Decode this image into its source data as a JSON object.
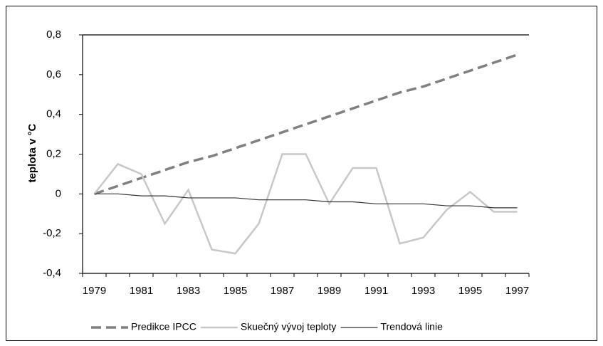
{
  "chart_data": {
    "type": "line",
    "y_label": "teplota v °C",
    "categories": [
      "1979",
      null,
      "1981",
      null,
      "1983",
      null,
      "1985",
      null,
      "1987",
      null,
      "1989",
      null,
      "1991",
      null,
      "1993",
      null,
      "1995",
      null,
      "1997"
    ],
    "ylim": [
      -0.4,
      0.8
    ],
    "yticks": [
      {
        "value": -0.4,
        "label": "-0,4"
      },
      {
        "value": -0.2,
        "label": "-0,2"
      },
      0,
      {
        "value": 0.2,
        "label": "0,2"
      },
      {
        "value": 0.4,
        "label": "0,4"
      },
      {
        "value": 0.6,
        "label": "0,6"
      },
      {
        "value": 0.8,
        "label": "0,8"
      }
    ],
    "series": [
      {
        "name": "Predikce IPCC",
        "color": "#808080",
        "dashed": true,
        "values": [
          0,
          0.04,
          0.08,
          0.12,
          0.16,
          0.19,
          0.23,
          0.27,
          0.31,
          0.35,
          0.39,
          0.43,
          0.47,
          0.51,
          0.54,
          0.58,
          0.62,
          0.66,
          0.7
        ]
      },
      {
        "name": "Skuečný vývoj teploty",
        "color": "#c8c8c8",
        "dashed": false,
        "values": [
          0,
          0.15,
          0.1,
          -0.15,
          0.02,
          -0.28,
          -0.3,
          -0.15,
          0.2,
          0.2,
          -0.05,
          0.13,
          0.13,
          -0.25,
          -0.22,
          -0.08,
          0.01,
          -0.09,
          -0.09
        ]
      },
      {
        "name": "Trendová linie",
        "color": "#333333",
        "dashed": false,
        "values": [
          0,
          0,
          -0.01,
          -0.01,
          -0.02,
          -0.02,
          -0.02,
          -0.03,
          -0.03,
          -0.03,
          -0.04,
          -0.04,
          -0.05,
          -0.05,
          -0.05,
          -0.06,
          -0.06,
          -0.07,
          -0.07
        ]
      }
    ],
    "legend": "bottom"
  }
}
